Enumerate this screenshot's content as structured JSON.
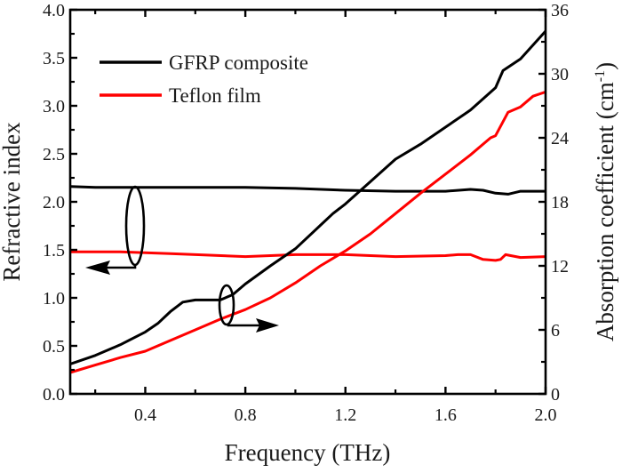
{
  "chart_data": {
    "type": "line",
    "title": "",
    "xlabel": "Frequency (THz)",
    "ylabel_left": "Refractive index",
    "ylabel_right_main": "Absorption coefficient (cm",
    "ylabel_right_sup": "-1",
    "ylabel_right_end": ")",
    "xlim": [
      0.1,
      2.0
    ],
    "ylim_left": [
      0.0,
      4.0
    ],
    "ylim_right": [
      0,
      36
    ],
    "x_ticks": [
      0.4,
      0.8,
      1.2,
      1.6,
      2.0
    ],
    "x_tick_labels": [
      "0.4",
      "0.8",
      "1.2",
      "1.6",
      "2.0"
    ],
    "x_minor_ticks": [
      0.2,
      0.6,
      1.0,
      1.4,
      1.8
    ],
    "y_left_ticks": [
      0.0,
      0.5,
      1.0,
      1.5,
      2.0,
      2.5,
      3.0,
      3.5,
      4.0
    ],
    "y_left_tick_labels": [
      "0.0",
      "0.5",
      "1.0",
      "1.5",
      "2.0",
      "2.5",
      "3.0",
      "3.5",
      "4.0"
    ],
    "y_left_minor_ticks": [
      0.25,
      0.75,
      1.25,
      1.75,
      2.25,
      2.75,
      3.25,
      3.75
    ],
    "y_right_ticks": [
      0,
      6,
      12,
      18,
      24,
      30,
      36
    ],
    "y_right_tick_labels": [
      "0",
      "6",
      "12",
      "18",
      "24",
      "30",
      "36"
    ],
    "y_right_minor_ticks": [
      3,
      9,
      15,
      21,
      27,
      33
    ],
    "grid": false,
    "legend_position": "top-left",
    "legend": [
      {
        "label": "GFRP composite",
        "color": "#000000"
      },
      {
        "label": "Teflon film",
        "color": "#ff0000"
      }
    ],
    "series": [
      {
        "name": "GFRP composite",
        "quantity": "refractive index",
        "axis": "left",
        "color": "#000000",
        "x": [
          0.1,
          0.2,
          0.4,
          0.6,
          0.8,
          1.0,
          1.2,
          1.4,
          1.6,
          1.7,
          1.75,
          1.8,
          1.85,
          1.9,
          2.0
        ],
        "y": [
          2.16,
          2.15,
          2.15,
          2.15,
          2.15,
          2.14,
          2.12,
          2.11,
          2.11,
          2.13,
          2.12,
          2.09,
          2.08,
          2.11,
          2.11
        ]
      },
      {
        "name": "Teflon film",
        "quantity": "refractive index",
        "axis": "left",
        "color": "#ff0000",
        "x": [
          0.1,
          0.3,
          0.5,
          0.8,
          1.0,
          1.2,
          1.4,
          1.6,
          1.65,
          1.7,
          1.75,
          1.8,
          1.82,
          1.84,
          1.9,
          2.0
        ],
        "y": [
          1.48,
          1.48,
          1.46,
          1.43,
          1.45,
          1.45,
          1.43,
          1.44,
          1.45,
          1.45,
          1.4,
          1.39,
          1.4,
          1.45,
          1.42,
          1.43
        ]
      },
      {
        "name": "GFRP composite",
        "quantity": "absorption coefficient",
        "axis": "right",
        "color": "#000000",
        "x": [
          0.1,
          0.2,
          0.3,
          0.4,
          0.45,
          0.5,
          0.55,
          0.6,
          0.7,
          0.75,
          0.8,
          0.9,
          1.0,
          1.1,
          1.15,
          1.2,
          1.3,
          1.4,
          1.5,
          1.6,
          1.7,
          1.8,
          1.83,
          1.9,
          2.0
        ],
        "y": [
          2.8,
          3.6,
          4.6,
          5.8,
          6.6,
          7.7,
          8.6,
          8.8,
          8.8,
          9.3,
          10.3,
          12.0,
          13.6,
          15.8,
          16.9,
          17.8,
          19.9,
          22.0,
          23.4,
          25.0,
          26.6,
          28.7,
          30.3,
          31.4,
          34.0
        ]
      },
      {
        "name": "Teflon film",
        "quantity": "absorption coefficient",
        "axis": "right",
        "color": "#ff0000",
        "x": [
          0.1,
          0.2,
          0.3,
          0.4,
          0.5,
          0.6,
          0.7,
          0.8,
          0.9,
          1.0,
          1.1,
          1.2,
          1.3,
          1.4,
          1.5,
          1.6,
          1.7,
          1.78,
          1.8,
          1.85,
          1.9,
          1.95,
          2.0
        ],
        "y": [
          2.0,
          2.7,
          3.4,
          4.0,
          5.0,
          6.0,
          7.0,
          7.9,
          9.0,
          10.4,
          12.0,
          13.4,
          15.0,
          16.9,
          18.8,
          20.6,
          22.4,
          24.0,
          24.2,
          26.4,
          26.9,
          27.9,
          28.3
        ]
      }
    ]
  }
}
